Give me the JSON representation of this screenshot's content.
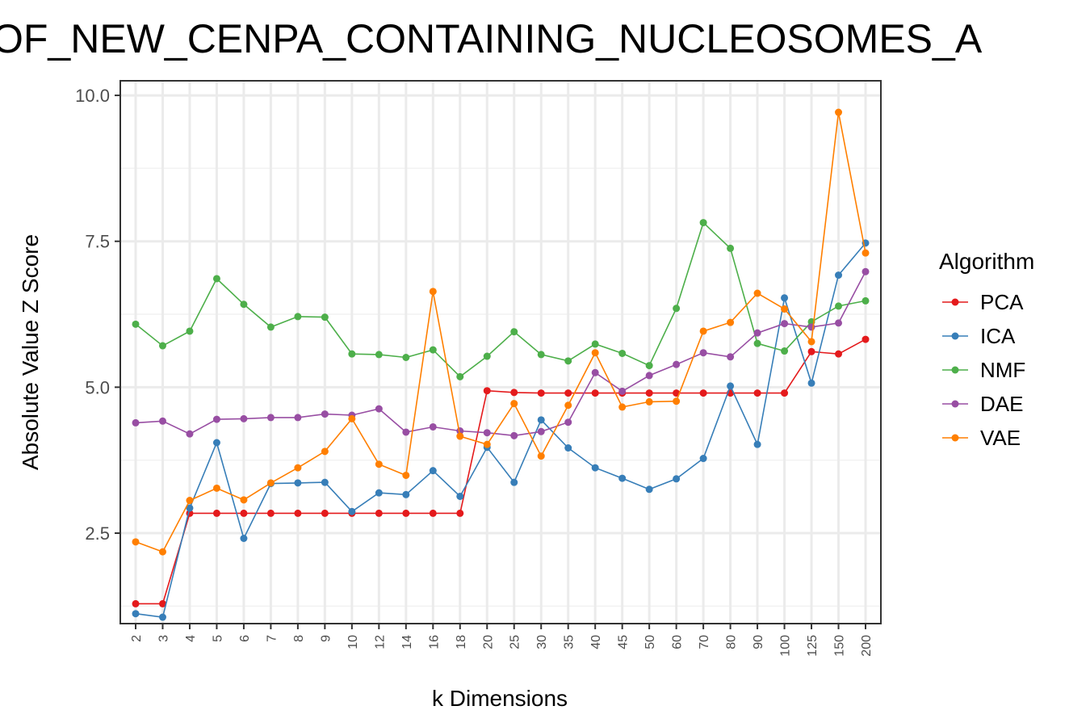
{
  "chart_data": {
    "type": "line",
    "title": "OF_NEW_CENPA_CONTAINING_NUCLEOSOMES_A",
    "xlabel": "k Dimensions",
    "ylabel": "Absolute Value Z Score",
    "ylim": [
      0.95,
      10.25
    ],
    "y_ticks": [
      "2.5",
      "5.0",
      "7.5",
      "10.0"
    ],
    "grid": true,
    "legend_title": "Algorithm",
    "legend_position": "right",
    "categories": [
      "2",
      "3",
      "4",
      "5",
      "6",
      "7",
      "8",
      "9",
      "10",
      "12",
      "14",
      "16",
      "18",
      "20",
      "25",
      "30",
      "35",
      "40",
      "45",
      "50",
      "60",
      "70",
      "80",
      "90",
      "100",
      "125",
      "150",
      "200"
    ],
    "series": [
      {
        "name": "PCA",
        "color": "#e41a1c",
        "values": [
          1.29,
          1.29,
          2.84,
          2.84,
          2.84,
          2.84,
          2.84,
          2.84,
          2.84,
          2.84,
          2.84,
          2.84,
          2.84,
          4.94,
          4.91,
          4.9,
          4.9,
          4.9,
          4.9,
          4.9,
          4.9,
          4.9,
          4.9,
          4.9,
          4.9,
          5.61,
          5.57,
          5.82
        ]
      },
      {
        "name": "ICA",
        "color": "#377eb8",
        "values": [
          1.12,
          1.06,
          2.93,
          4.05,
          2.41,
          3.35,
          3.36,
          3.37,
          2.87,
          3.19,
          3.16,
          3.57,
          3.13,
          3.97,
          3.37,
          4.44,
          3.96,
          3.62,
          3.44,
          3.25,
          3.43,
          3.78,
          5.02,
          4.02,
          6.53,
          5.07,
          6.92,
          7.47
        ]
      },
      {
        "name": "NMF",
        "color": "#4daf4a",
        "values": [
          6.08,
          5.71,
          5.96,
          6.86,
          6.42,
          6.03,
          6.21,
          6.2,
          5.57,
          5.56,
          5.51,
          5.64,
          5.18,
          5.53,
          5.95,
          5.56,
          5.45,
          5.74,
          5.58,
          5.37,
          6.35,
          7.82,
          7.38,
          5.75,
          5.62,
          6.12,
          6.39,
          6.48
        ]
      },
      {
        "name": "DAE",
        "color": "#984ea3",
        "values": [
          4.39,
          4.42,
          4.2,
          4.45,
          4.46,
          4.48,
          4.48,
          4.54,
          4.52,
          4.63,
          4.23,
          4.32,
          4.25,
          4.22,
          4.17,
          4.24,
          4.4,
          5.25,
          4.93,
          5.2,
          5.39,
          5.59,
          5.52,
          5.93,
          6.09,
          6.03,
          6.1,
          6.98
        ]
      },
      {
        "name": "VAE",
        "color": "#ff7f00",
        "values": [
          2.35,
          2.18,
          3.06,
          3.27,
          3.07,
          3.36,
          3.62,
          3.9,
          4.46,
          3.68,
          3.49,
          6.64,
          4.16,
          4.02,
          4.72,
          3.82,
          4.69,
          5.59,
          4.66,
          4.75,
          4.76,
          5.96,
          6.11,
          6.61,
          6.34,
          5.78,
          9.71,
          7.3
        ]
      }
    ]
  }
}
